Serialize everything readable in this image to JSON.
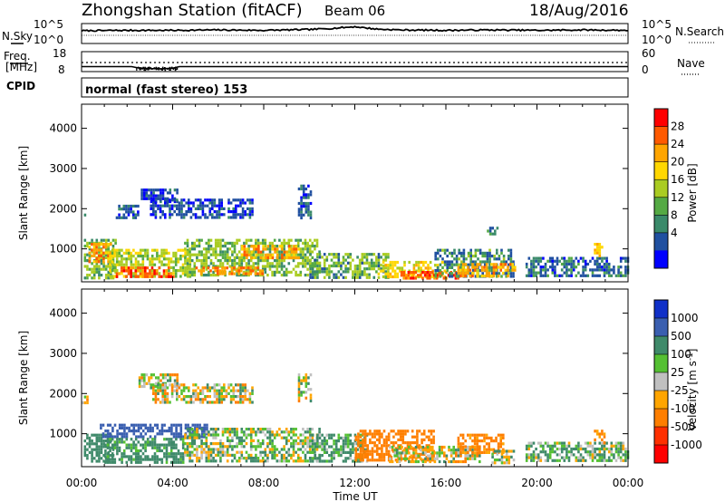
{
  "header": {
    "station": "Zhongshan Station (fitACF)",
    "beam": "Beam 06",
    "date": "18/Aug/2016"
  },
  "scan_panel": {
    "left_label": "N.Sky",
    "right_label": "N.Search",
    "left_ticks": [
      "10^5",
      "10^0"
    ],
    "right_ticks": [
      "10^5",
      "10^0"
    ]
  },
  "freq_panel": {
    "left_label_1": "Freq.",
    "left_label_2": "[MHz]",
    "right_label": "Nave",
    "left_ticks": [
      "18",
      "8"
    ],
    "right_ticks": [
      "60",
      "0"
    ]
  },
  "cpid": {
    "label": "CPID",
    "text": "normal (fast stereo) 153"
  },
  "x_axis": {
    "label": "Time UT",
    "ticks": [
      "00:00",
      "04:00",
      "08:00",
      "12:00",
      "16:00",
      "20:00",
      "00:00"
    ]
  },
  "power_colorbar": {
    "title": "Power [dB]",
    "ticks": [
      "28",
      "24",
      "20",
      "16",
      "12",
      "8",
      "4"
    ],
    "colors": [
      "#ff0000",
      "#ff5a00",
      "#ffa500",
      "#ffd700",
      "#aacc22",
      "#55aa44",
      "#3a8a6a",
      "#2050a0",
      "#0000ff"
    ]
  },
  "velocity_colorbar": {
    "title": "Velocity [m s^-1]",
    "ticks": [
      "1000",
      "500",
      "100",
      "25",
      "-25",
      "-100",
      "-500",
      "-1000"
    ],
    "colors": [
      "#1030c8",
      "#3a5fb0",
      "#3f8a6a",
      "#55c033",
      "#c0c0c0",
      "#ffa500",
      "#ff7f00",
      "#ff3000",
      "#ff0000"
    ]
  },
  "chart_data": [
    {
      "type": "heatmap",
      "title": "Zhongshan Station (fitACF)",
      "subtitle": "Beam 06",
      "date": "18/Aug/2016",
      "xlabel": "Time UT",
      "ylabel": "Slant Range [km]",
      "colorbar_label": "Power [dB]",
      "xlim_hours": [
        0,
        24
      ],
      "ylim_km": [
        180,
        4600
      ],
      "yticks": [
        1000,
        2000,
        3000,
        4000
      ],
      "xticks": [
        "00:00",
        "04:00",
        "08:00",
        "12:00",
        "16:00",
        "20:00",
        "00:00"
      ],
      "color_levels_dB": [
        4,
        8,
        12,
        16,
        20,
        24,
        28
      ],
      "echo_regions": [
        {
          "t0": 0.0,
          "t1": 0.2,
          "r0": 1750,
          "r1": 1950,
          "value": 6
        },
        {
          "t0": 0.1,
          "t1": 1.5,
          "r0": 300,
          "r1": 1250,
          "value": 12
        },
        {
          "t0": 0.3,
          "t1": 1.3,
          "r0": 650,
          "r1": 1150,
          "value": 22
        },
        {
          "t0": 1.5,
          "t1": 2.5,
          "r0": 1800,
          "r1": 2100,
          "value": 6
        },
        {
          "t0": 1.2,
          "t1": 4.8,
          "r0": 300,
          "r1": 1000,
          "value": 14
        },
        {
          "t0": 1.5,
          "t1": 4.0,
          "r0": 340,
          "r1": 560,
          "value": 26
        },
        {
          "t0": 2.6,
          "t1": 4.2,
          "r0": 2200,
          "r1": 2500,
          "value": 5
        },
        {
          "t0": 3.0,
          "t1": 7.5,
          "r0": 1800,
          "r1": 2250,
          "value": 5
        },
        {
          "t0": 4.5,
          "t1": 10.5,
          "r0": 350,
          "r1": 1250,
          "value": 12
        },
        {
          "t0": 5.0,
          "t1": 8.0,
          "r0": 380,
          "r1": 560,
          "value": 24
        },
        {
          "t0": 7.0,
          "t1": 9.5,
          "r0": 800,
          "r1": 1100,
          "value": 22
        },
        {
          "t0": 9.5,
          "t1": 10.1,
          "r0": 1800,
          "r1": 2600,
          "value": 6
        },
        {
          "t0": 10.0,
          "t1": 13.5,
          "r0": 300,
          "r1": 900,
          "value": 11
        },
        {
          "t0": 13.0,
          "t1": 16.0,
          "r0": 300,
          "r1": 700,
          "value": 18
        },
        {
          "t0": 14.0,
          "t1": 16.5,
          "r0": 250,
          "r1": 450,
          "value": 26
        },
        {
          "t0": 15.5,
          "t1": 19.0,
          "r0": 300,
          "r1": 1000,
          "value": 9
        },
        {
          "t0": 16.5,
          "t1": 19.0,
          "r0": 350,
          "r1": 650,
          "value": 22
        },
        {
          "t0": 17.8,
          "t1": 18.3,
          "r0": 1350,
          "r1": 1550,
          "value": 8
        },
        {
          "t0": 19.5,
          "t1": 24.0,
          "r0": 300,
          "r1": 800,
          "value": 7
        },
        {
          "t0": 22.5,
          "t1": 22.9,
          "r0": 800,
          "r1": 1150,
          "value": 20
        }
      ]
    },
    {
      "type": "heatmap",
      "xlabel": "Time UT",
      "ylabel": "Slant Range [km]",
      "colorbar_label": "Velocity [m s^-1]",
      "xlim_hours": [
        0,
        24
      ],
      "ylim_km": [
        180,
        4600
      ],
      "yticks": [
        1000,
        2000,
        3000,
        4000
      ],
      "xticks": [
        "00:00",
        "04:00",
        "08:00",
        "12:00",
        "16:00",
        "20:00",
        "00:00"
      ],
      "color_levels_ms": [
        -1000,
        -500,
        -100,
        -25,
        25,
        100,
        500,
        1000
      ],
      "echo_regions": [
        {
          "t0": 0.0,
          "t1": 0.3,
          "r0": 1750,
          "r1": 1950,
          "value": 0
        },
        {
          "t0": 0.1,
          "t1": 1.4,
          "r0": 300,
          "r1": 1000,
          "value": 300
        },
        {
          "t0": 0.8,
          "t1": 5.5,
          "r0": 900,
          "r1": 1250,
          "value": 800
        },
        {
          "t0": 1.0,
          "t1": 4.5,
          "r0": 300,
          "r1": 900,
          "value": 200
        },
        {
          "t0": 2.5,
          "t1": 4.2,
          "r0": 2200,
          "r1": 2500,
          "value": 0
        },
        {
          "t0": 3.0,
          "t1": 7.5,
          "r0": 1800,
          "r1": 2250,
          "value": 0
        },
        {
          "t0": 4.5,
          "t1": 10.5,
          "r0": 300,
          "r1": 1150,
          "value": 60
        },
        {
          "t0": 9.5,
          "t1": 10.1,
          "r0": 1800,
          "r1": 2500,
          "value": 0
        },
        {
          "t0": 10.0,
          "t1": 12.5,
          "r0": 300,
          "r1": 1000,
          "value": 150
        },
        {
          "t0": 12.0,
          "t1": 15.5,
          "r0": 350,
          "r1": 1100,
          "value": -300
        },
        {
          "t0": 13.5,
          "t1": 17.5,
          "r0": 300,
          "r1": 700,
          "value": 0
        },
        {
          "t0": 16.5,
          "t1": 18.5,
          "r0": 500,
          "r1": 1000,
          "value": -200
        },
        {
          "t0": 18.0,
          "t1": 19.0,
          "r0": 300,
          "r1": 600,
          "value": 60
        },
        {
          "t0": 19.5,
          "t1": 24.0,
          "r0": 300,
          "r1": 800,
          "value": 100
        },
        {
          "t0": 22.5,
          "t1": 23.0,
          "r0": 800,
          "r1": 1100,
          "value": -200
        }
      ]
    },
    {
      "type": "line",
      "name": "N.Sky",
      "xlim_hours": [
        0,
        24
      ],
      "ylim_log10": [
        0,
        5
      ],
      "x": [
        0,
        2,
        4,
        6,
        8,
        10,
        11,
        12,
        13,
        14,
        16,
        18,
        20,
        22,
        24
      ],
      "y_log10": [
        3.2,
        3.3,
        3.3,
        3.4,
        3.3,
        3.5,
        3.8,
        4.2,
        3.6,
        3.4,
        3.3,
        3.4,
        3.3,
        3.4,
        3.3
      ]
    },
    {
      "type": "line",
      "name": "Freq.",
      "xlim_hours": [
        0,
        24
      ],
      "ylim": [
        8,
        18
      ],
      "x": [
        0,
        2.2,
        2.5,
        3.0,
        3.5,
        4.0,
        4.3,
        24
      ],
      "y": [
        10.5,
        10.5,
        9.8,
        9.5,
        9.4,
        9.7,
        10.5,
        10.5
      ]
    }
  ]
}
